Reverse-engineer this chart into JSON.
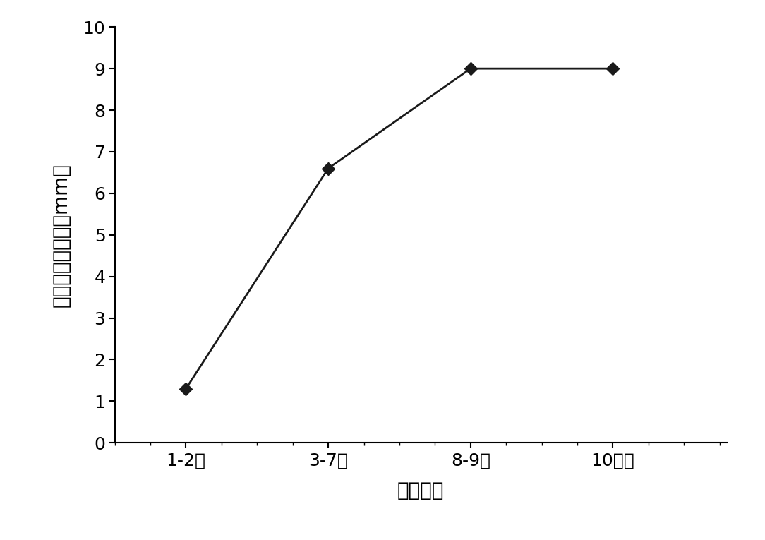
{
  "x_positions": [
    1,
    2,
    3,
    4
  ],
  "x_labels": [
    "1-2天",
    "3-7天",
    "8-9天",
    "10天后"
  ],
  "y_values": [
    1.3,
    6.6,
    9.0,
    9.0
  ],
  "ylim": [
    0,
    10
  ],
  "yticks": [
    0,
    1,
    2,
    3,
    4,
    5,
    6,
    7,
    8,
    9,
    10
  ],
  "ylabel": "菌丝体生长长度（mm）",
  "xlabel": "发酵时间",
  "line_color": "#1a1a1a",
  "marker": "D",
  "marker_color": "#1a1a1a",
  "marker_size": 9,
  "linewidth": 2.0,
  "background_color": "#ffffff",
  "label_fontsize": 20,
  "tick_fontsize": 18,
  "xlim_left": 0.5,
  "xlim_right": 4.8
}
